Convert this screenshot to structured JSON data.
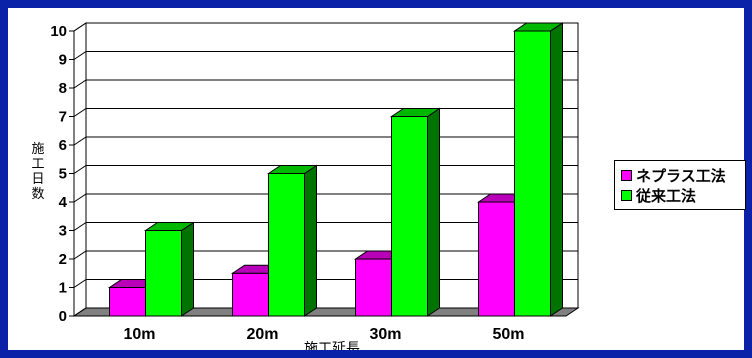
{
  "chart_data": {
    "type": "bar",
    "xlabel": "施工延長",
    "ylabel": "施工日数",
    "categories": [
      "10m",
      "20m",
      "30m",
      "50m"
    ],
    "ylim": [
      0,
      10
    ],
    "yticks": [
      0,
      1,
      2,
      3,
      4,
      5,
      6,
      7,
      8,
      9,
      10
    ],
    "grid": true,
    "legend_position": "right",
    "series": [
      {
        "name": "ネプラス工法",
        "values": [
          1,
          1.5,
          2,
          4
        ],
        "color": "#ff00ff"
      },
      {
        "name": "従来工法",
        "values": [
          3,
          5,
          7,
          10
        ],
        "color": "#00ff00"
      }
    ]
  }
}
